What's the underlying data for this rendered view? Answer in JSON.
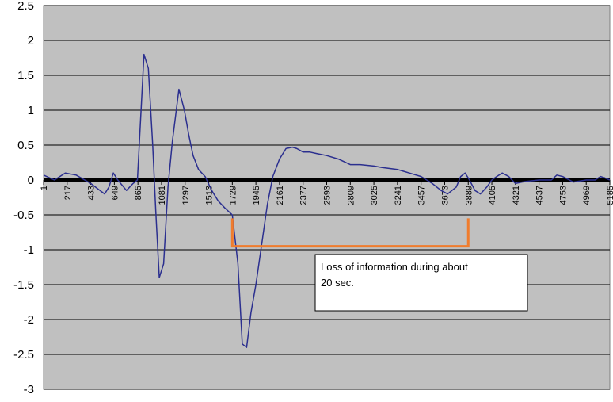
{
  "chart_data": {
    "type": "line",
    "title": "",
    "xlabel": "",
    "ylabel": "",
    "ylim": [
      -3,
      2.5
    ],
    "y_ticks": [
      "2.5",
      "2",
      "1.5",
      "1",
      "0.5",
      "0",
      "-0.5",
      "-1",
      "-1.5",
      "-2",
      "-2.5",
      "-3"
    ],
    "y_tick_values": [
      2.5,
      2,
      1.5,
      1,
      0.5,
      0,
      -0.5,
      -1,
      -1.5,
      -2,
      -2.5,
      -3
    ],
    "x_ticks": [
      "1",
      "217",
      "433",
      "649",
      "865",
      "1081",
      "1297",
      "1513",
      "1729",
      "1945",
      "2161",
      "2377",
      "2593",
      "2809",
      "3025",
      "3241",
      "3457",
      "3673",
      "3889",
      "4105",
      "4321",
      "4537",
      "4753",
      "4969",
      "5185"
    ],
    "xlim": [
      1,
      5185
    ],
    "grid": true,
    "legend": "none",
    "series": [
      {
        "x": [
          1,
          100,
          200,
          300,
          433,
          560,
          600,
          640,
          680,
          760,
          820,
          860,
          920,
          960,
          1000,
          1030,
          1060,
          1100,
          1140,
          1180,
          1240,
          1290,
          1330,
          1370,
          1420,
          1480,
          1540,
          1600,
          1660,
          1729,
          1780,
          1820,
          1860,
          1900,
          1945,
          2000,
          2050,
          2100,
          2161,
          2220,
          2280,
          2320,
          2377,
          2440,
          2500,
          2593,
          2700,
          2809,
          2900,
          3025,
          3100,
          3241,
          3350,
          3457,
          3560,
          3640,
          3700,
          3780,
          3820,
          3860,
          3900,
          3950,
          4000,
          4060,
          4105,
          4150,
          4200,
          4260,
          4321,
          4380,
          4420,
          4537,
          4650,
          4700,
          4753,
          4850,
          4969,
          5050,
          5100,
          5140,
          5185
        ],
        "values": [
          0.07,
          0.0,
          0.1,
          0.07,
          -0.05,
          -0.2,
          -0.1,
          0.1,
          0.0,
          -0.15,
          -0.05,
          0.0,
          1.8,
          1.6,
          0.5,
          -0.5,
          -1.4,
          -1.2,
          -0.1,
          0.55,
          1.3,
          1.0,
          0.65,
          0.35,
          0.15,
          0.05,
          -0.15,
          -0.3,
          -0.4,
          -0.5,
          -1.2,
          -2.35,
          -2.4,
          -1.9,
          -1.5,
          -0.9,
          -0.35,
          0.05,
          0.3,
          0.45,
          0.47,
          0.45,
          0.4,
          0.4,
          0.38,
          0.35,
          0.3,
          0.22,
          0.22,
          0.2,
          0.18,
          0.15,
          0.1,
          0.05,
          -0.05,
          -0.15,
          -0.2,
          -0.1,
          0.05,
          0.1,
          0.0,
          -0.15,
          -0.2,
          -0.1,
          0.0,
          0.05,
          0.1,
          0.05,
          -0.05,
          -0.03,
          -0.02,
          0.0,
          0.0,
          0.07,
          0.05,
          -0.03,
          0.0,
          0.0,
          0.05,
          0.03,
          0.0
        ],
        "color": "#2b2f8f"
      }
    ],
    "annotations": [
      {
        "text": "Loss of information during about 20 sec.",
        "bracket_x": [
          1729,
          3889
        ],
        "bracket_y": -0.95,
        "bracket_top_y": -0.55,
        "bracket_color": "#f07c2d"
      }
    ],
    "colors": {
      "plot_bg": "#c0c0c0",
      "grid": "#000000",
      "zero_line": "#000000",
      "annotation_box_bg": "#ffffff",
      "annotation_box_border": "#000000"
    }
  }
}
